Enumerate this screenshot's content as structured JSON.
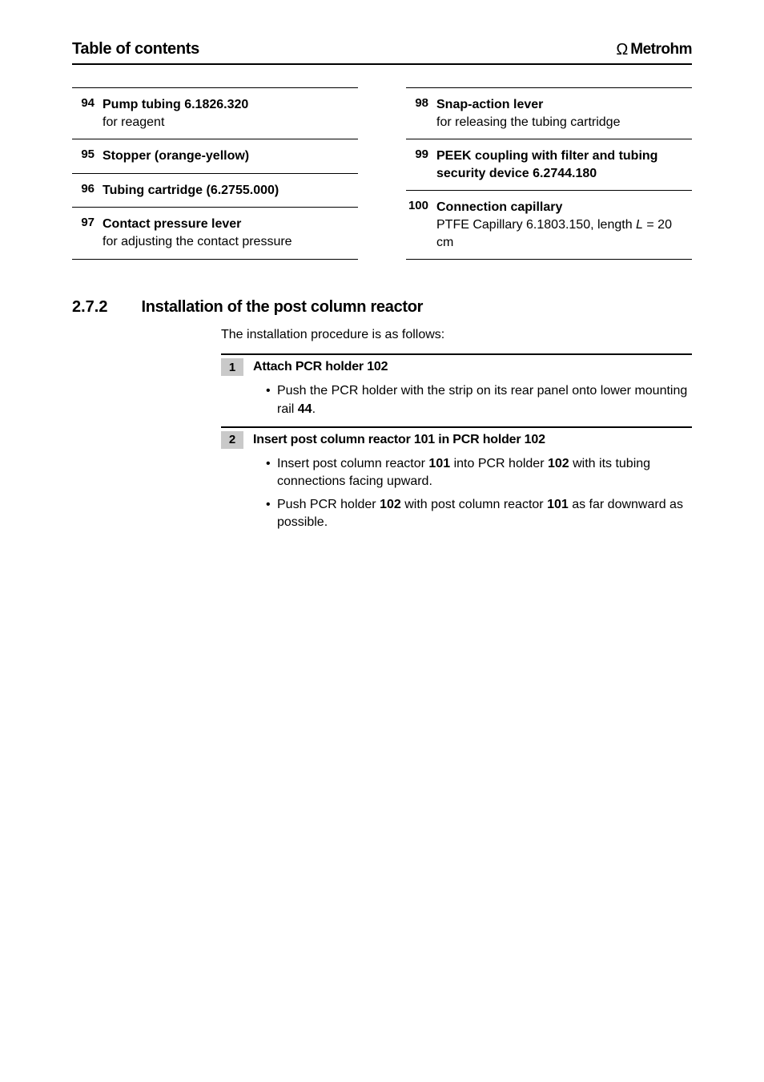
{
  "header": {
    "title": "Table of contents",
    "brand": "Metrohm"
  },
  "left_entries": [
    {
      "num": "94",
      "title": "Pump tubing 6.1826.320",
      "desc": "for reagent"
    },
    {
      "num": "95",
      "title": "Stopper (orange-yellow)",
      "desc": ""
    },
    {
      "num": "96",
      "title": "Tubing cartridge (6.2755.000)",
      "desc": ""
    },
    {
      "num": "97",
      "title": "Contact pressure lever",
      "desc": "for adjusting the contact pressure"
    }
  ],
  "right_entries": [
    {
      "num": "98",
      "title": "Snap-action lever",
      "desc": "for releasing the tubing cartridge"
    },
    {
      "num": "99",
      "title": "PEEK coupling with filter and tubing security device 6.2744.180",
      "desc": ""
    },
    {
      "num": "100",
      "title": "Connection capillary",
      "desc_pre": "PTFE Capillary 6.1803.150, length ",
      "desc_var": "L",
      "desc_post": " = 20 cm"
    }
  ],
  "section": {
    "num": "2.7.2",
    "title": "Installation of the post column reactor",
    "intro": "The installation procedure is as follows:"
  },
  "steps": [
    {
      "n": "1",
      "title_parts": [
        "Attach PCR holder ",
        "102"
      ],
      "items": [
        {
          "runs": [
            "Push the PCR holder with the strip on its rear panel onto lower mounting rail ",
            {
              "b": "44"
            },
            "."
          ]
        }
      ]
    },
    {
      "n": "2",
      "title_parts": [
        "Insert post column reactor ",
        "101",
        " in PCR holder ",
        "102"
      ],
      "items": [
        {
          "runs": [
            "Insert post column reactor ",
            {
              "b": "101"
            },
            " into PCR holder ",
            {
              "b": "102"
            },
            " with its tubing connections facing upward."
          ]
        },
        {
          "runs": [
            "Push PCR holder ",
            {
              "b": "102"
            },
            " with post column reactor ",
            {
              "b": "101"
            },
            " as far downward as possible."
          ]
        }
      ]
    }
  ]
}
